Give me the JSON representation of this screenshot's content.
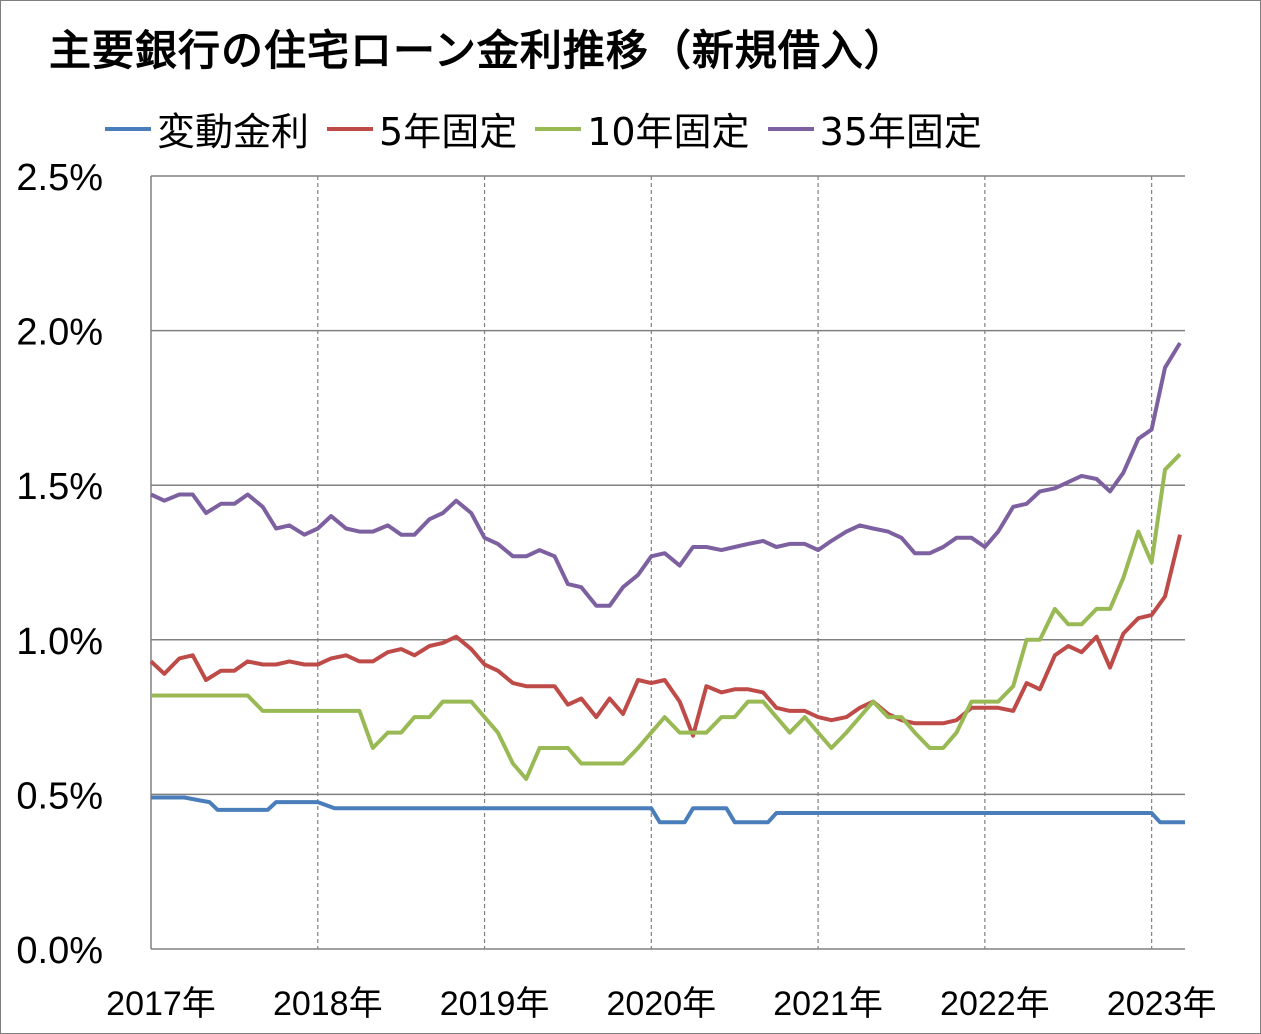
{
  "chart_data": {
    "type": "line",
    "title": "主要銀行の住宅ローン金利推移（新規借入）",
    "xlabel": "",
    "ylabel": "",
    "ylim": [
      0,
      2.5
    ],
    "xlim": [
      2017.0,
      2023.2
    ],
    "y_ticks": [
      "0.0%",
      "0.5%",
      "1.0%",
      "1.5%",
      "2.0%",
      "2.5%"
    ],
    "y_tick_values": [
      0,
      0.5,
      1.0,
      1.5,
      2.0,
      2.5
    ],
    "x_ticks": [
      "2017年",
      "2018年",
      "2019年",
      "2020年",
      "2021年",
      "2022年",
      "2023年"
    ],
    "x_tick_values": [
      2017,
      2018,
      2019,
      2020,
      2021,
      2022,
      2023
    ],
    "grid": true,
    "legend_position": "top",
    "series": [
      {
        "name": "変動金利",
        "color": "#4a7ebb",
        "x": [
          2017.0,
          2017.1,
          2017.2,
          2017.3,
          2017.35,
          2017.4,
          2017.6,
          2017.7,
          2017.75,
          2017.9,
          2018.0,
          2018.1,
          2019.0,
          2019.5,
          2019.9,
          2020.0,
          2020.05,
          2020.2,
          2020.25,
          2020.45,
          2020.5,
          2020.7,
          2020.75,
          2021.0,
          2021.5,
          2022.0,
          2022.5,
          2023.0,
          2023.05,
          2023.2
        ],
        "y": [
          0.49,
          0.49,
          0.49,
          0.48,
          0.475,
          0.45,
          0.45,
          0.45,
          0.475,
          0.475,
          0.475,
          0.455,
          0.455,
          0.455,
          0.455,
          0.455,
          0.41,
          0.41,
          0.455,
          0.455,
          0.41,
          0.41,
          0.44,
          0.44,
          0.44,
          0.44,
          0.44,
          0.44,
          0.41,
          0.41
        ]
      },
      {
        "name": "5年固定",
        "color": "#be4b48",
        "x": [
          2017.0,
          2017.08,
          2017.17,
          2017.25,
          2017.33,
          2017.42,
          2017.5,
          2017.58,
          2017.67,
          2017.75,
          2017.83,
          2017.92,
          2018.0,
          2018.08,
          2018.17,
          2018.25,
          2018.33,
          2018.42,
          2018.5,
          2018.58,
          2018.67,
          2018.75,
          2018.83,
          2018.92,
          2019.0,
          2019.08,
          2019.17,
          2019.25,
          2019.33,
          2019.42,
          2019.5,
          2019.58,
          2019.67,
          2019.75,
          2019.83,
          2019.92,
          2020.0,
          2020.08,
          2020.17,
          2020.25,
          2020.33,
          2020.42,
          2020.5,
          2020.58,
          2020.67,
          2020.75,
          2020.83,
          2020.92,
          2021.0,
          2021.08,
          2021.17,
          2021.25,
          2021.33,
          2021.42,
          2021.5,
          2021.58,
          2021.67,
          2021.75,
          2021.83,
          2021.92,
          2022.0,
          2022.08,
          2022.17,
          2022.25,
          2022.33,
          2022.42,
          2022.5,
          2022.58,
          2022.67,
          2022.75,
          2022.83,
          2022.92,
          2023.0,
          2023.08,
          2023.17
        ],
        "y": [
          0.93,
          0.89,
          0.94,
          0.95,
          0.87,
          0.9,
          0.9,
          0.93,
          0.92,
          0.92,
          0.93,
          0.92,
          0.92,
          0.94,
          0.95,
          0.93,
          0.93,
          0.96,
          0.97,
          0.95,
          0.98,
          0.99,
          1.01,
          0.97,
          0.92,
          0.9,
          0.86,
          0.85,
          0.85,
          0.85,
          0.79,
          0.81,
          0.75,
          0.81,
          0.76,
          0.87,
          0.86,
          0.87,
          0.8,
          0.69,
          0.85,
          0.83,
          0.84,
          0.84,
          0.83,
          0.78,
          0.77,
          0.77,
          0.75,
          0.74,
          0.75,
          0.78,
          0.8,
          0.76,
          0.74,
          0.73,
          0.73,
          0.73,
          0.74,
          0.78,
          0.78,
          0.78,
          0.77,
          0.86,
          0.84,
          0.95,
          0.98,
          0.96,
          1.01,
          0.91,
          1.02,
          1.07,
          1.08,
          1.14,
          1.34
        ]
      },
      {
        "name": "10年固定",
        "color": "#98b954",
        "x": [
          2017.0,
          2017.08,
          2017.17,
          2017.25,
          2017.33,
          2017.42,
          2017.5,
          2017.58,
          2017.67,
          2017.75,
          2017.83,
          2017.92,
          2018.0,
          2018.08,
          2018.17,
          2018.25,
          2018.33,
          2018.42,
          2018.5,
          2018.58,
          2018.67,
          2018.75,
          2018.83,
          2018.92,
          2019.0,
          2019.08,
          2019.17,
          2019.25,
          2019.33,
          2019.42,
          2019.5,
          2019.58,
          2019.67,
          2019.75,
          2019.83,
          2019.92,
          2020.0,
          2020.08,
          2020.17,
          2020.25,
          2020.33,
          2020.42,
          2020.5,
          2020.58,
          2020.67,
          2020.75,
          2020.83,
          2020.92,
          2021.0,
          2021.08,
          2021.17,
          2021.25,
          2021.33,
          2021.42,
          2021.5,
          2021.58,
          2021.67,
          2021.75,
          2021.83,
          2021.92,
          2022.0,
          2022.08,
          2022.17,
          2022.25,
          2022.33,
          2022.42,
          2022.5,
          2022.58,
          2022.67,
          2022.75,
          2022.83,
          2022.92,
          2023.0,
          2023.08,
          2023.17
        ],
        "y": [
          0.82,
          0.82,
          0.82,
          0.82,
          0.82,
          0.82,
          0.82,
          0.82,
          0.77,
          0.77,
          0.77,
          0.77,
          0.77,
          0.77,
          0.77,
          0.77,
          0.65,
          0.7,
          0.7,
          0.75,
          0.75,
          0.8,
          0.8,
          0.8,
          0.75,
          0.7,
          0.6,
          0.55,
          0.65,
          0.65,
          0.65,
          0.6,
          0.6,
          0.6,
          0.6,
          0.65,
          0.7,
          0.75,
          0.7,
          0.7,
          0.7,
          0.75,
          0.75,
          0.8,
          0.8,
          0.75,
          0.7,
          0.75,
          0.7,
          0.65,
          0.7,
          0.75,
          0.8,
          0.75,
          0.75,
          0.7,
          0.65,
          0.65,
          0.7,
          0.8,
          0.8,
          0.8,
          0.85,
          1.0,
          1.0,
          1.1,
          1.05,
          1.05,
          1.1,
          1.1,
          1.2,
          1.35,
          1.25,
          1.55,
          1.6
        ]
      },
      {
        "name": "35年固定",
        "color": "#7d60a0",
        "x": [
          2017.0,
          2017.08,
          2017.17,
          2017.25,
          2017.33,
          2017.42,
          2017.5,
          2017.58,
          2017.67,
          2017.75,
          2017.83,
          2017.92,
          2018.0,
          2018.08,
          2018.17,
          2018.25,
          2018.33,
          2018.42,
          2018.5,
          2018.58,
          2018.67,
          2018.75,
          2018.83,
          2018.92,
          2019.0,
          2019.08,
          2019.17,
          2019.25,
          2019.33,
          2019.42,
          2019.5,
          2019.58,
          2019.67,
          2019.75,
          2019.83,
          2019.92,
          2020.0,
          2020.08,
          2020.17,
          2020.25,
          2020.33,
          2020.42,
          2020.5,
          2020.58,
          2020.67,
          2020.75,
          2020.83,
          2020.92,
          2021.0,
          2021.08,
          2021.17,
          2021.25,
          2021.33,
          2021.42,
          2021.5,
          2021.58,
          2021.67,
          2021.75,
          2021.83,
          2021.92,
          2022.0,
          2022.08,
          2022.17,
          2022.25,
          2022.33,
          2022.42,
          2022.5,
          2022.58,
          2022.67,
          2022.75,
          2022.83,
          2022.92,
          2023.0,
          2023.08,
          2023.17
        ],
        "y": [
          1.47,
          1.45,
          1.47,
          1.47,
          1.41,
          1.44,
          1.44,
          1.47,
          1.43,
          1.36,
          1.37,
          1.34,
          1.36,
          1.4,
          1.36,
          1.35,
          1.35,
          1.37,
          1.34,
          1.34,
          1.39,
          1.41,
          1.45,
          1.41,
          1.33,
          1.31,
          1.27,
          1.27,
          1.29,
          1.27,
          1.18,
          1.17,
          1.11,
          1.11,
          1.17,
          1.21,
          1.27,
          1.28,
          1.24,
          1.3,
          1.3,
          1.29,
          1.3,
          1.31,
          1.32,
          1.3,
          1.31,
          1.31,
          1.29,
          1.32,
          1.35,
          1.37,
          1.36,
          1.35,
          1.33,
          1.28,
          1.28,
          1.3,
          1.33,
          1.33,
          1.3,
          1.35,
          1.43,
          1.44,
          1.48,
          1.49,
          1.51,
          1.53,
          1.52,
          1.48,
          1.54,
          1.65,
          1.68,
          1.88,
          1.96
        ]
      }
    ]
  }
}
